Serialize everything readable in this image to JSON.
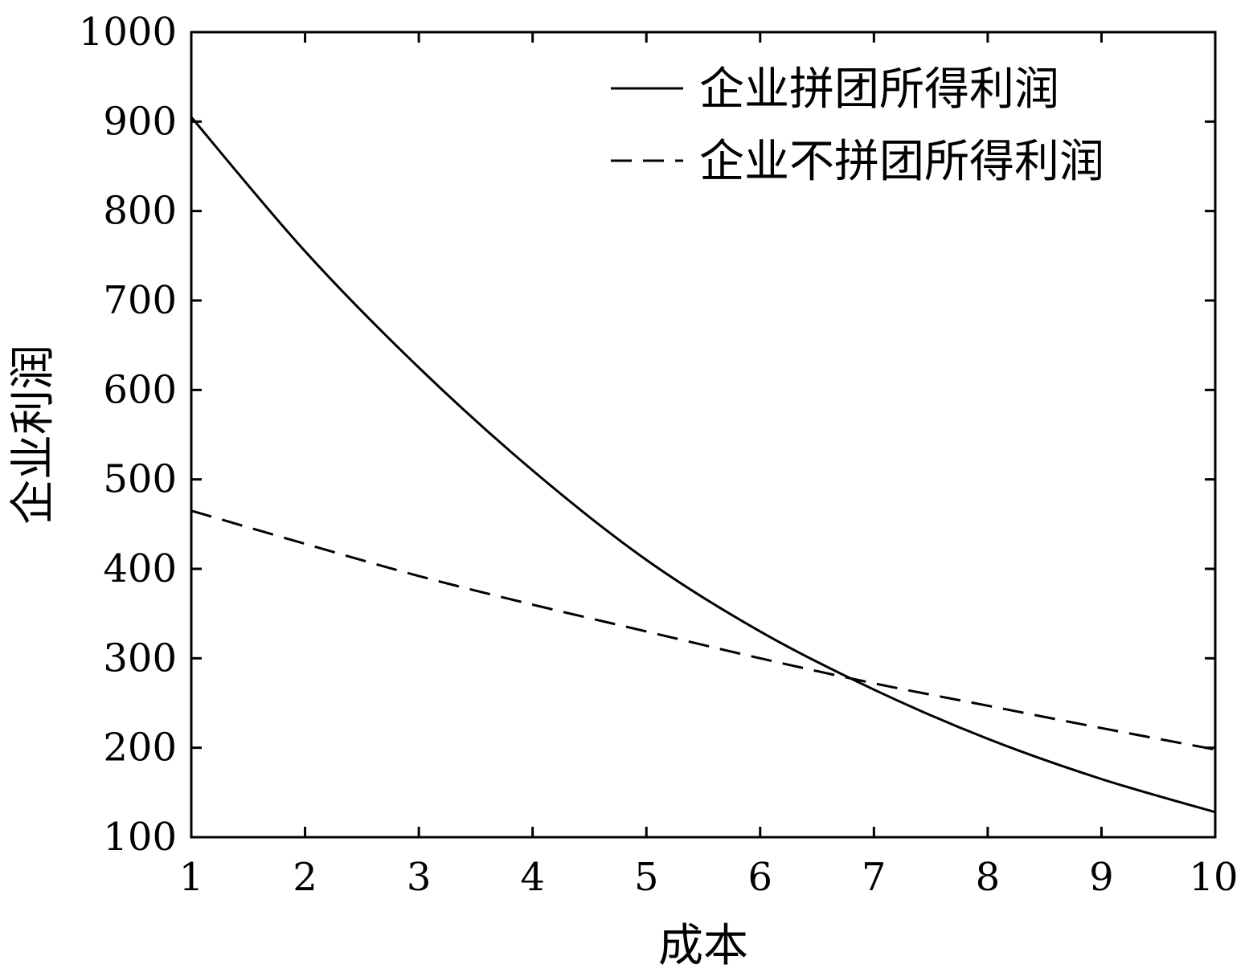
{
  "chart_data": {
    "type": "line",
    "title": "",
    "xlabel": "成本",
    "ylabel": "企业利润",
    "xlim": [
      1,
      10
    ],
    "ylim": [
      100,
      1000
    ],
    "xticks": [
      "1",
      "2",
      "3",
      "4",
      "5",
      "6",
      "7",
      "8",
      "9",
      "10"
    ],
    "yticks": [
      "100",
      "200",
      "300",
      "400",
      "500",
      "600",
      "700",
      "800",
      "900",
      "1000"
    ],
    "grid": false,
    "legend_position": "top-right",
    "x": [
      1,
      2,
      3,
      4,
      5,
      6,
      7,
      8,
      9,
      10
    ],
    "series": [
      {
        "name": "企业拼团所得利润",
        "style": "solid",
        "color": "#000000",
        "values": [
          905,
          755,
          625,
          510,
          410,
          330,
          265,
          210,
          165,
          128
        ]
      },
      {
        "name": "企业不拼团所得利润",
        "style": "dashed",
        "color": "#000000",
        "values": [
          465,
          428,
          392,
          360,
          330,
          300,
          272,
          247,
          222,
          198
        ]
      }
    ]
  }
}
